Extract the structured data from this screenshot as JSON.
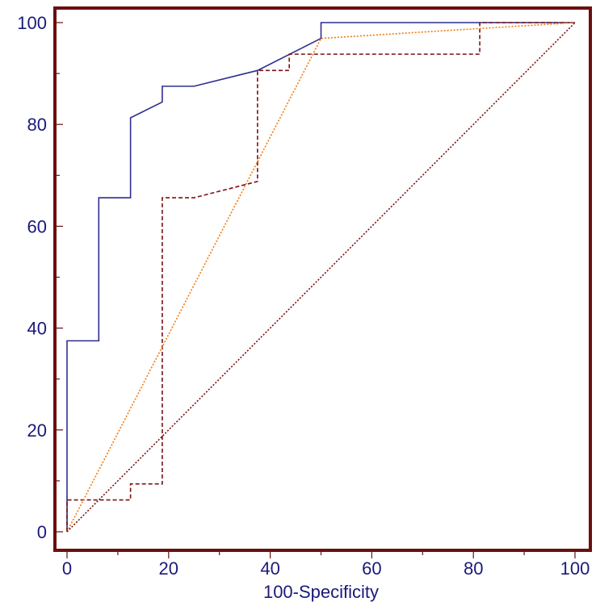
{
  "chart_data": {
    "type": "line",
    "title": "",
    "xlabel": "100-Specificity",
    "ylabel": "",
    "xlim": [
      0,
      100
    ],
    "ylim": [
      0,
      100
    ],
    "x_ticks": [
      0,
      20,
      40,
      60,
      80,
      100
    ],
    "y_ticks": [
      0,
      20,
      40,
      60,
      80,
      100
    ],
    "grid": false,
    "legend": "none",
    "series": [
      {
        "style": "solid",
        "color": "#2e2e8f",
        "points": [
          [
            0,
            0
          ],
          [
            0,
            37.5
          ],
          [
            6.25,
            37.5
          ],
          [
            6.25,
            65.6
          ],
          [
            12.5,
            65.6
          ],
          [
            12.5,
            81.3
          ],
          [
            18.75,
            84.4
          ],
          [
            18.75,
            87.5
          ],
          [
            25,
            87.5
          ],
          [
            37.5,
            90.6
          ],
          [
            50,
            96.9
          ],
          [
            50,
            100
          ],
          [
            100,
            100
          ]
        ]
      },
      {
        "style": "dashed",
        "color": "#7a1010",
        "points": [
          [
            0,
            0
          ],
          [
            0,
            6.25
          ],
          [
            12.5,
            6.25
          ],
          [
            12.5,
            9.4
          ],
          [
            18.75,
            9.4
          ],
          [
            18.75,
            65.6
          ],
          [
            25,
            65.6
          ],
          [
            37.5,
            68.8
          ],
          [
            37.5,
            90.6
          ],
          [
            43.75,
            90.6
          ],
          [
            43.75,
            93.8
          ],
          [
            81.25,
            93.8
          ],
          [
            81.25,
            100
          ],
          [
            100,
            100
          ]
        ]
      },
      {
        "style": "dotted",
        "color": "#f07a10",
        "points": [
          [
            0,
            0
          ],
          [
            50,
            96.9
          ],
          [
            100,
            100
          ]
        ]
      },
      {
        "style": "dotted",
        "color": "#7a1010",
        "points": [
          [
            0,
            0
          ],
          [
            100,
            100
          ]
        ]
      }
    ]
  }
}
